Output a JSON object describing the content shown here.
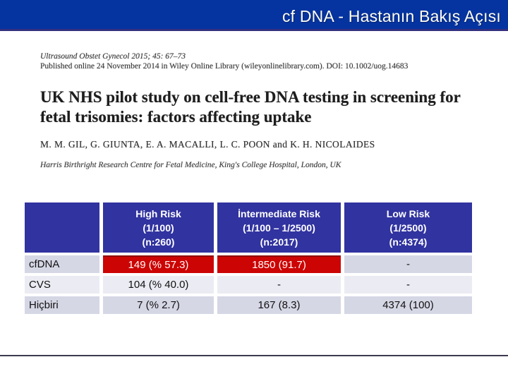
{
  "header": {
    "title": "cf DNA - Hastanın Bakış Açısı",
    "bg_color": "#0534a1",
    "underline_color": "#34307e"
  },
  "paper": {
    "journal_line": "Ultrasound Obstet Gynecol 2015; 45: 67–73",
    "published_line": "Published online 24 November 2014 in Wiley Online Library (wileyonlinelibrary.com). DOI: 10.1002/uog.14683",
    "title": "UK NHS pilot study on cell-free DNA testing in screening for fetal trisomies: factors affecting uptake",
    "authors": "M. M. GIL, G. GIUNTA, E. A. MACALLI, L. C. POON and K. H. NICOLAIDES",
    "affiliation": "Harris Birthright Research Centre for Fetal Medicine, King's College Hospital, London, UK"
  },
  "table": {
    "colors": {
      "header_bg": "#3133a0",
      "highlight_bg": "#cc0404",
      "band_dark": "#d6d7e5",
      "band_light": "#ebecf3"
    },
    "columns": [
      {
        "line1": "High Risk",
        "line2": "(1/100)",
        "line3": "(n:260)"
      },
      {
        "line1": "İntermediate Risk",
        "line2": "(1/100 – 1/2500)",
        "line3": "(n:2017)"
      },
      {
        "line1": "Low Risk",
        "line2": "(1/2500)",
        "line3": "(n:4374)"
      }
    ],
    "rows": [
      {
        "label": "cfDNA",
        "high": "149 (% 57.3)",
        "intermediate": "1850 (91.7)",
        "low": "-"
      },
      {
        "label": "CVS",
        "high": "104 (% 40.0)",
        "intermediate": "-",
        "low": "-"
      },
      {
        "label": "Hiçbiri",
        "high": "7 (% 2.7)",
        "intermediate": "167 (8.3)",
        "low": "4374 (100)"
      }
    ]
  }
}
